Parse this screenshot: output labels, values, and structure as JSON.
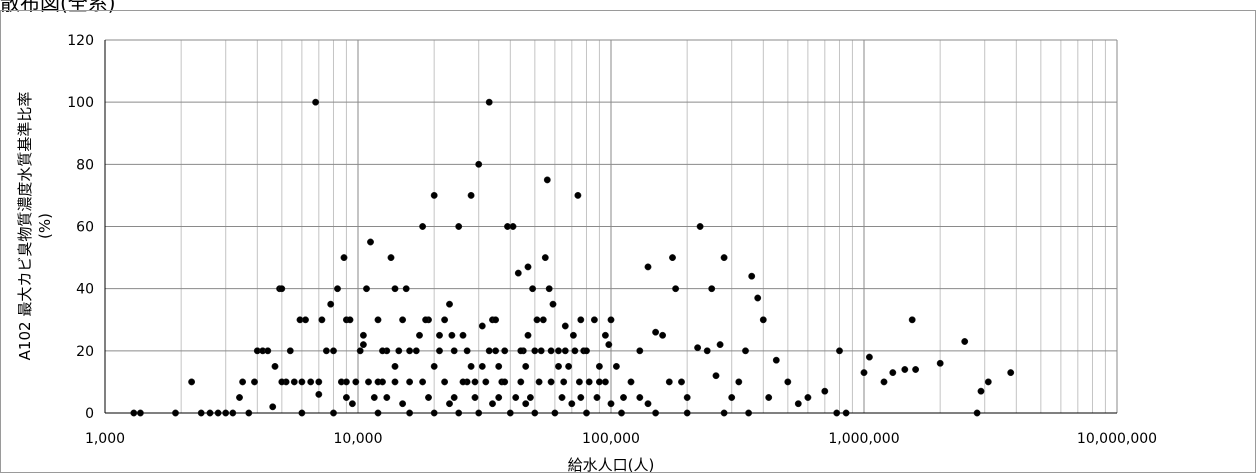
{
  "title": "散布図(全系)",
  "chart_data": {
    "type": "scatter",
    "xscale": "log",
    "xlim": [
      1000,
      10000000
    ],
    "ylim": [
      0,
      120
    ],
    "grid": true,
    "xlabel": "給水人口(人)",
    "ylabel": [
      "A102 最大カビ臭物質濃度水質基準比率",
      "(%)"
    ],
    "xticks": [
      1000,
      10000,
      100000,
      1000000,
      10000000
    ],
    "xtick_labels": [
      "1,000",
      "10,000",
      "100,000",
      "1,000,000",
      "10,000,000"
    ],
    "yticks": [
      0,
      20,
      40,
      60,
      80,
      100,
      120
    ],
    "ytick_labels": [
      "0",
      "20",
      "40",
      "60",
      "80",
      "100",
      "120"
    ],
    "marker_color": "#000000",
    "points": [
      [
        1300,
        0
      ],
      [
        1380,
        0
      ],
      [
        1900,
        0
      ],
      [
        2200,
        10
      ],
      [
        2400,
        0
      ],
      [
        2600,
        0
      ],
      [
        2800,
        0
      ],
      [
        3000,
        0
      ],
      [
        3200,
        0
      ],
      [
        3400,
        5
      ],
      [
        3500,
        10
      ],
      [
        3700,
        0
      ],
      [
        3900,
        10
      ],
      [
        4000,
        20
      ],
      [
        4200,
        20
      ],
      [
        4400,
        20
      ],
      [
        4600,
        2
      ],
      [
        4700,
        15
      ],
      [
        4900,
        40
      ],
      [
        5000,
        40
      ],
      [
        5200,
        10
      ],
      [
        5400,
        20
      ],
      [
        5600,
        10
      ],
      [
        5900,
        30
      ],
      [
        6200,
        30
      ],
      [
        6500,
        10
      ],
      [
        6800,
        100
      ],
      [
        7000,
        6
      ],
      [
        7200,
        30
      ],
      [
        7500,
        20
      ],
      [
        7800,
        35
      ],
      [
        8000,
        20
      ],
      [
        8300,
        40
      ],
      [
        8600,
        10
      ],
      [
        8800,
        50
      ],
      [
        9000,
        30
      ],
      [
        9300,
        30
      ],
      [
        9800,
        10
      ],
      [
        10200,
        20
      ],
      [
        10500,
        22
      ],
      [
        10800,
        40
      ],
      [
        11200,
        55
      ],
      [
        11600,
        5
      ],
      [
        12000,
        10
      ],
      [
        12500,
        10
      ],
      [
        13000,
        20
      ],
      [
        13500,
        50
      ],
      [
        14000,
        40
      ],
      [
        14500,
        20
      ],
      [
        15000,
        30
      ],
      [
        15500,
        40
      ],
      [
        16000,
        10
      ],
      [
        17000,
        20
      ],
      [
        18000,
        60
      ],
      [
        19000,
        30
      ],
      [
        20000,
        70
      ],
      [
        21000,
        25
      ],
      [
        22000,
        30
      ],
      [
        23000,
        35
      ],
      [
        24000,
        20
      ],
      [
        25000,
        60
      ],
      [
        26000,
        25
      ],
      [
        27000,
        10
      ],
      [
        28000,
        70
      ],
      [
        29000,
        10
      ],
      [
        30000,
        80
      ],
      [
        31000,
        15
      ],
      [
        33000,
        100
      ],
      [
        34000,
        30
      ],
      [
        35000,
        20
      ],
      [
        37000,
        10
      ],
      [
        39000,
        60
      ],
      [
        41000,
        60
      ],
      [
        43000,
        45
      ],
      [
        45000,
        20
      ],
      [
        47000,
        47
      ],
      [
        49000,
        40
      ],
      [
        51000,
        30
      ],
      [
        53000,
        20
      ],
      [
        55000,
        50
      ],
      [
        56000,
        75
      ],
      [
        57000,
        40
      ],
      [
        59000,
        35
      ],
      [
        62000,
        20
      ],
      [
        65000,
        10
      ],
      [
        68000,
        15
      ],
      [
        71000,
        25
      ],
      [
        74000,
        70
      ],
      [
        78000,
        20
      ],
      [
        82000,
        10
      ],
      [
        86000,
        30
      ],
      [
        90000,
        10
      ],
      [
        95000,
        25
      ],
      [
        100000,
        30
      ],
      [
        105000,
        15
      ],
      [
        112000,
        5
      ],
      [
        120000,
        10
      ],
      [
        130000,
        20
      ],
      [
        140000,
        47
      ],
      [
        150000,
        26
      ],
      [
        160000,
        25
      ],
      [
        170000,
        10
      ],
      [
        175000,
        50
      ],
      [
        180000,
        40
      ],
      [
        190000,
        10
      ],
      [
        200000,
        5
      ],
      [
        220000,
        21
      ],
      [
        225000,
        60
      ],
      [
        240000,
        20
      ],
      [
        250000,
        40
      ],
      [
        260000,
        12
      ],
      [
        270000,
        22
      ],
      [
        280000,
        50
      ],
      [
        300000,
        5
      ],
      [
        320000,
        10
      ],
      [
        340000,
        20
      ],
      [
        360000,
        44
      ],
      [
        380000,
        37
      ],
      [
        400000,
        30
      ],
      [
        420000,
        5
      ],
      [
        450000,
        17
      ],
      [
        500000,
        10
      ],
      [
        550000,
        3
      ],
      [
        600000,
        5
      ],
      [
        700000,
        7
      ],
      [
        780000,
        0
      ],
      [
        800000,
        20
      ],
      [
        850000,
        0
      ],
      [
        1000000,
        13
      ],
      [
        1050000,
        18
      ],
      [
        1200000,
        10
      ],
      [
        1300000,
        13
      ],
      [
        1450000,
        14
      ],
      [
        1550000,
        30
      ],
      [
        1600000,
        14
      ],
      [
        2000000,
        16
      ],
      [
        2500000,
        23
      ],
      [
        2800000,
        0
      ],
      [
        2900000,
        7
      ],
      [
        3100000,
        10
      ],
      [
        3800000,
        13
      ],
      [
        6000,
        0
      ],
      [
        8000,
        0
      ],
      [
        12000,
        0
      ],
      [
        16000,
        0
      ],
      [
        20000,
        0
      ],
      [
        25000,
        0
      ],
      [
        30000,
        0
      ],
      [
        40000,
        0
      ],
      [
        50000,
        0
      ],
      [
        60000,
        0
      ],
      [
        80000,
        0
      ],
      [
        110000,
        0
      ],
      [
        150000,
        0
      ],
      [
        200000,
        0
      ],
      [
        280000,
        0
      ],
      [
        350000,
        0
      ],
      [
        5000,
        10
      ],
      [
        6000,
        10
      ],
      [
        7000,
        10
      ],
      [
        9000,
        10
      ],
      [
        11000,
        10
      ],
      [
        14000,
        10
      ],
      [
        18000,
        10
      ],
      [
        22000,
        10
      ],
      [
        26000,
        10
      ],
      [
        32000,
        10
      ],
      [
        38000,
        10
      ],
      [
        44000,
        10
      ],
      [
        52000,
        10
      ],
      [
        58000,
        10
      ],
      [
        75000,
        10
      ],
      [
        95000,
        10
      ],
      [
        12500,
        20
      ],
      [
        16000,
        20
      ],
      [
        21000,
        20
      ],
      [
        27000,
        20
      ],
      [
        33000,
        20
      ],
      [
        38000,
        20
      ],
      [
        44000,
        20
      ],
      [
        50000,
        20
      ],
      [
        58000,
        20
      ],
      [
        66000,
        20
      ],
      [
        72000,
        20
      ],
      [
        80000,
        20
      ],
      [
        9000,
        5
      ],
      [
        13000,
        5
      ],
      [
        19000,
        5
      ],
      [
        24000,
        5
      ],
      [
        29000,
        5
      ],
      [
        36000,
        5
      ],
      [
        42000,
        5
      ],
      [
        48000,
        5
      ],
      [
        64000,
        5
      ],
      [
        76000,
        5
      ],
      [
        88000,
        5
      ],
      [
        130000,
        5
      ],
      [
        9500,
        3
      ],
      [
        15000,
        3
      ],
      [
        23000,
        3
      ],
      [
        34000,
        3
      ],
      [
        46000,
        3
      ],
      [
        70000,
        3
      ],
      [
        100000,
        3
      ],
      [
        140000,
        3
      ],
      [
        14000,
        15
      ],
      [
        20000,
        15
      ],
      [
        28000,
        15
      ],
      [
        36000,
        15
      ],
      [
        46000,
        15
      ],
      [
        62000,
        15
      ],
      [
        90000,
        15
      ],
      [
        10500,
        25
      ],
      [
        17500,
        25
      ],
      [
        23500,
        25
      ],
      [
        31000,
        28
      ],
      [
        47000,
        25
      ],
      [
        66000,
        28
      ],
      [
        98000,
        22
      ],
      [
        12000,
        30
      ],
      [
        18500,
        30
      ],
      [
        35000,
        30
      ],
      [
        54000,
        30
      ],
      [
        76000,
        30
      ]
    ]
  }
}
